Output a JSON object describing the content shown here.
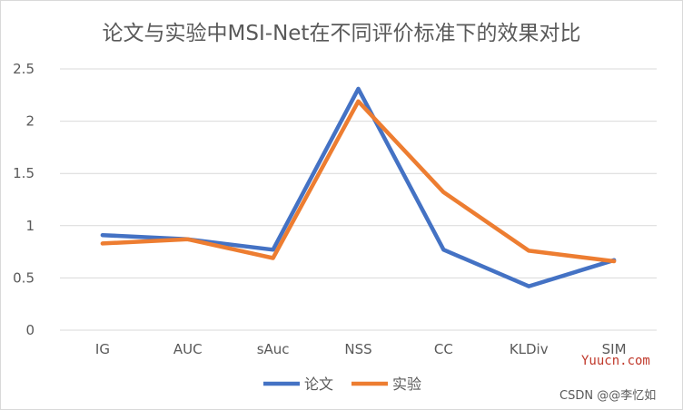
{
  "chart_data": {
    "type": "line",
    "title": "论文与实验中MSI-Net在不同评价标准下的效果对比",
    "categories": [
      "IG",
      "AUC",
      "sAuc",
      "NSS",
      "CC",
      "KLDiv",
      "SIM"
    ],
    "ylim": [
      0,
      2.5
    ],
    "yticks": [
      "0",
      "0.5",
      "1",
      "1.5",
      "2",
      "2.5"
    ],
    "ytick_values": [
      0,
      0.5,
      1,
      1.5,
      2,
      2.5
    ],
    "grid": true,
    "legend_position": "bottom",
    "series": [
      {
        "name": "论文",
        "color": "#4472c4",
        "values": [
          0.91,
          0.87,
          0.77,
          2.31,
          0.77,
          0.42,
          0.67
        ]
      },
      {
        "name": "实验",
        "color": "#ed7d31",
        "values": [
          0.83,
          0.87,
          0.69,
          2.19,
          1.32,
          0.76,
          0.66
        ]
      }
    ]
  },
  "watermark": {
    "site": "Yuucn.com",
    "credit": "CSDN @@李忆如"
  }
}
